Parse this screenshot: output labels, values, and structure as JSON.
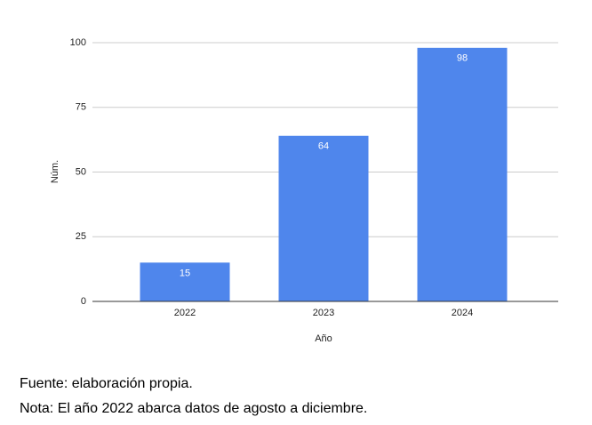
{
  "chart_data": {
    "type": "bar",
    "categories": [
      "2022",
      "2023",
      "2024"
    ],
    "values": [
      15,
      64,
      98
    ],
    "color": "#4f86ec",
    "ylim": [
      0,
      100
    ],
    "yticks": [
      0,
      25,
      50,
      75,
      100
    ],
    "grid": true,
    "y_label": "Núm.",
    "x_label": "Año",
    "notes": [
      "Fuente: elaboración propia.",
      "Nota: El año 2022 abarca datos de agosto a diciembre."
    ]
  }
}
